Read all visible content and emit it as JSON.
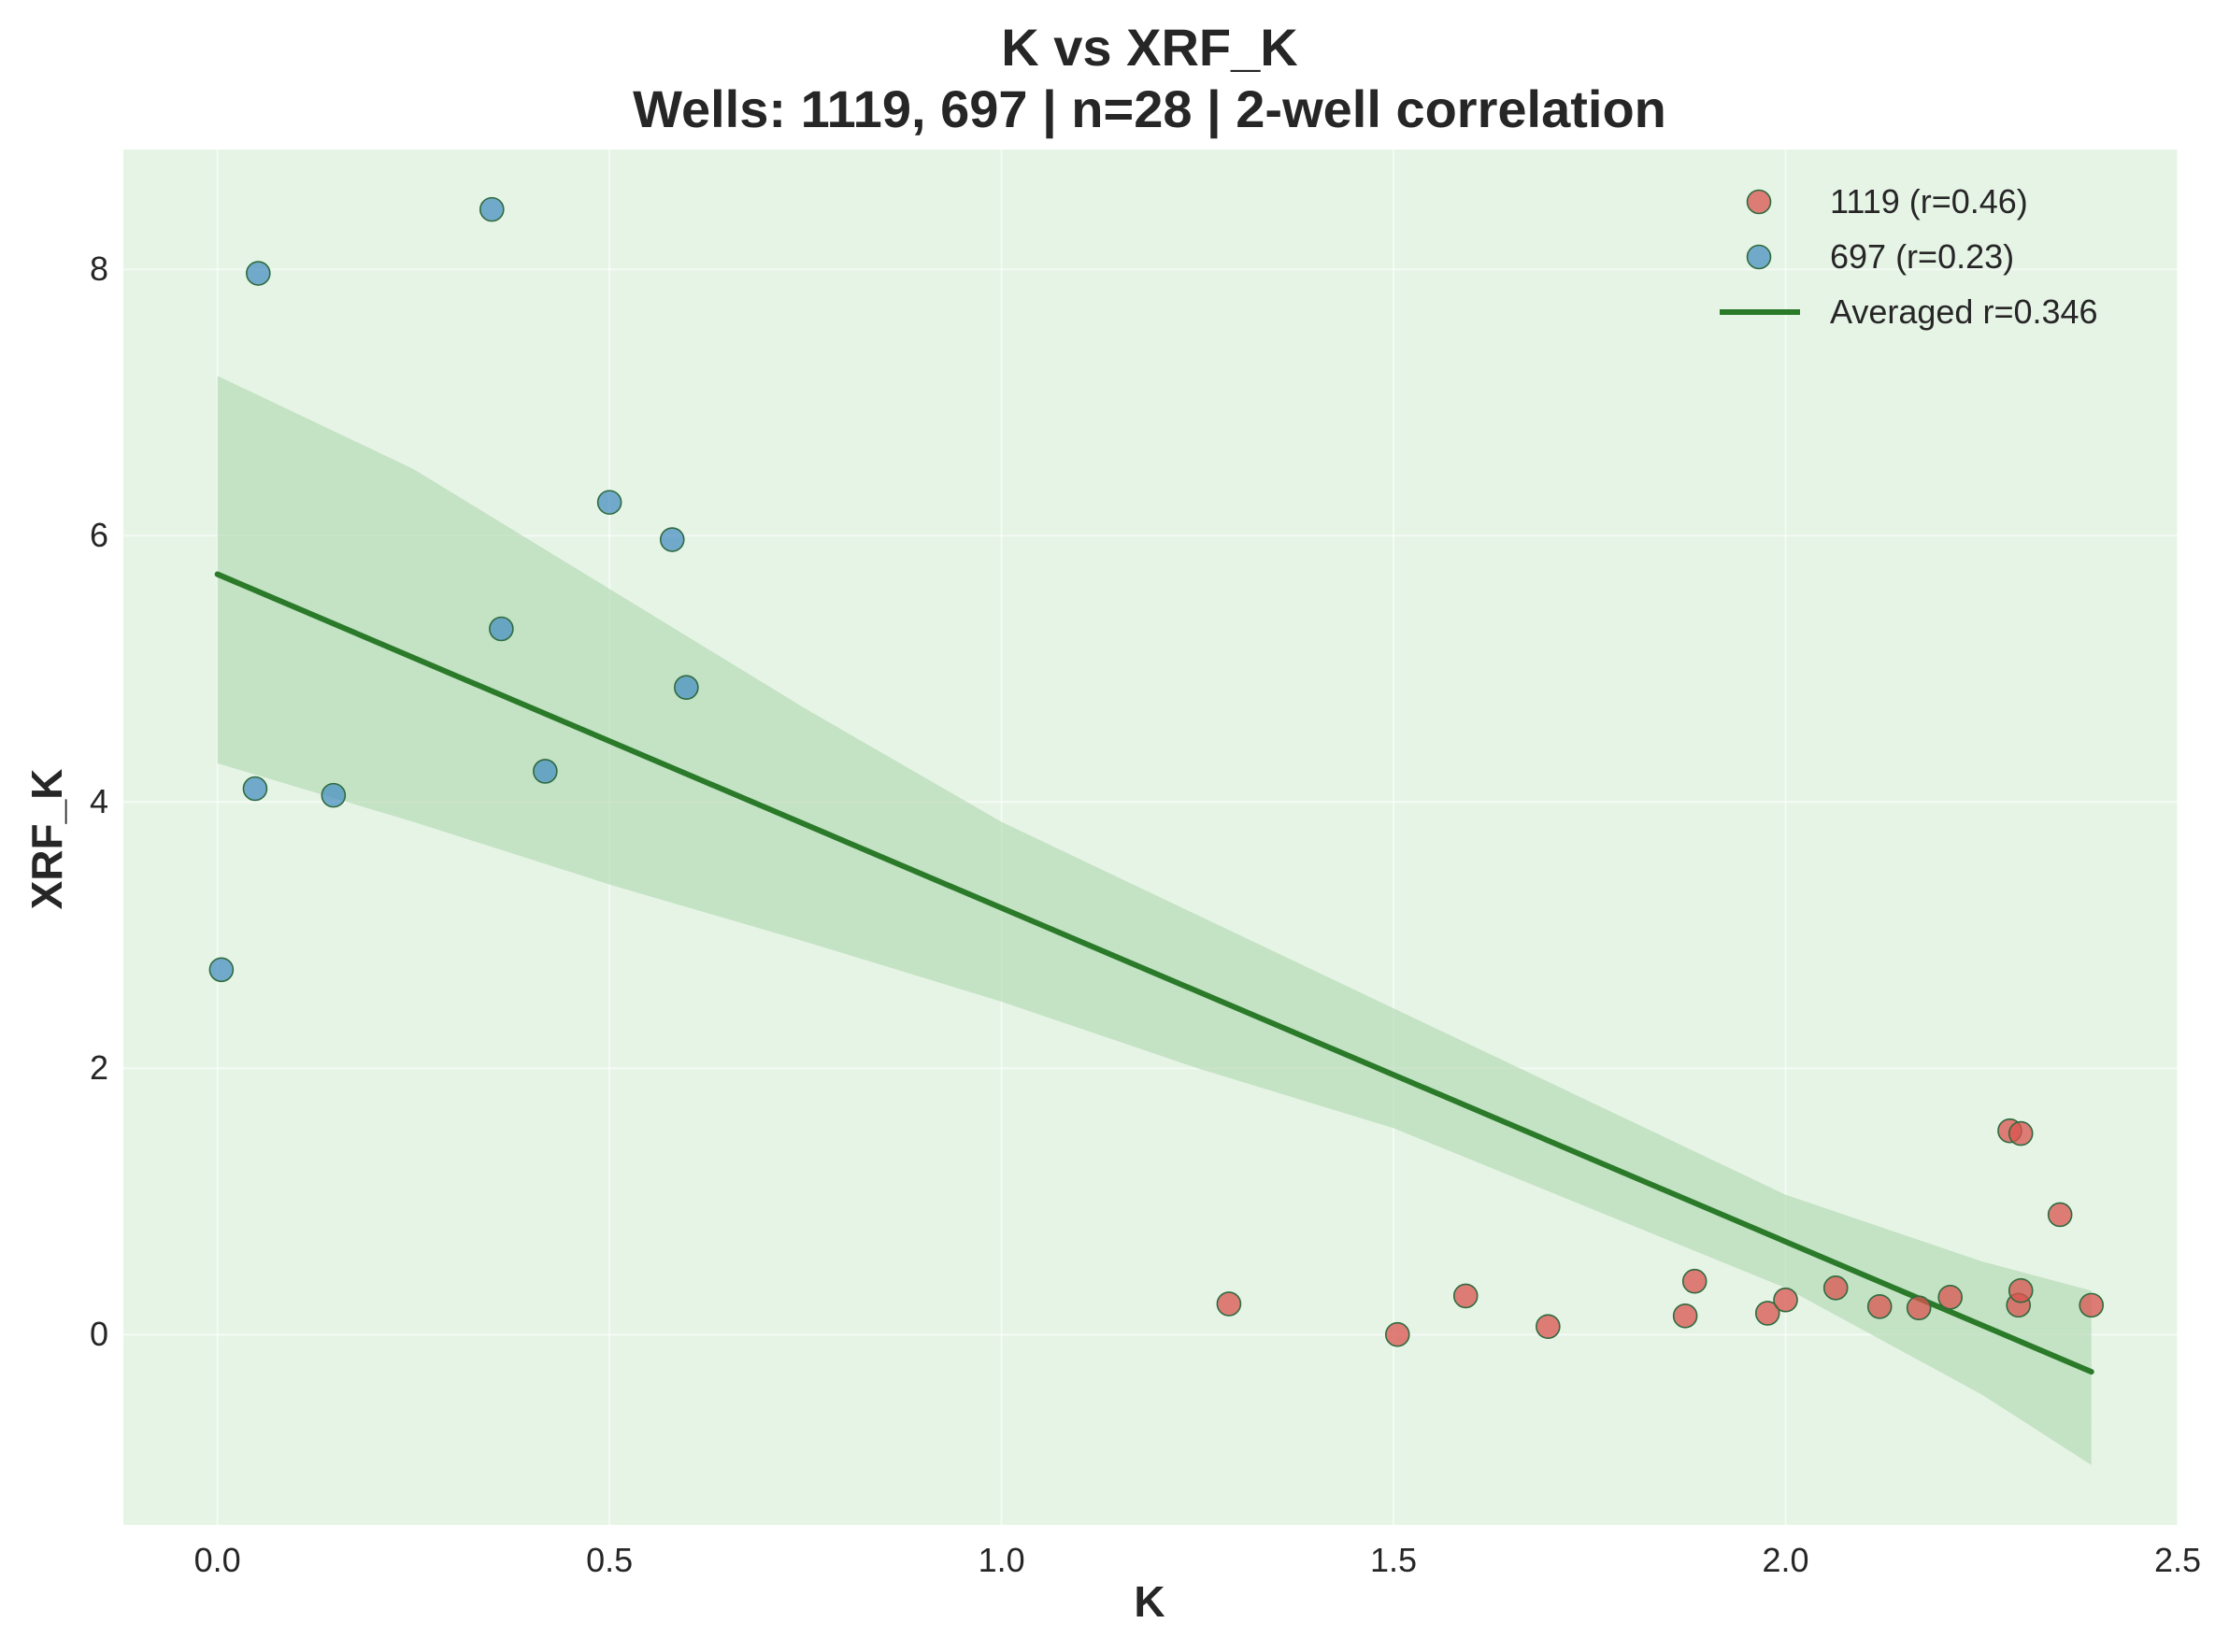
{
  "chart_data": {
    "type": "scatter",
    "title": "K vs XRF_K",
    "subtitle": "Wells: 1119, 697 | n=28 | 2-well correlation",
    "xlabel": "K",
    "ylabel": "XRF_K",
    "xlim": [
      -0.12,
      2.5
    ],
    "ylim": [
      -1.43,
      8.9
    ],
    "xticks": [
      0.0,
      0.5,
      1.0,
      1.5,
      2.0,
      2.5
    ],
    "xtick_labels": [
      "0.0",
      "0.5",
      "1.0",
      "1.5",
      "2.0",
      "2.5"
    ],
    "yticks": [
      0,
      2,
      4,
      6,
      8
    ],
    "ytick_labels": [
      "0",
      "2",
      "4",
      "6",
      "8"
    ],
    "grid": true,
    "legend_position": "top-right",
    "background_color": "#e6f4e6",
    "series": [
      {
        "name": "1119 (r=0.46)",
        "color": "#d9534f",
        "points": [
          [
            1.29,
            0.23
          ],
          [
            1.505,
            0.0
          ],
          [
            1.592,
            0.29
          ],
          [
            1.697,
            0.06
          ],
          [
            1.872,
            0.14
          ],
          [
            1.884,
            0.4
          ],
          [
            1.977,
            0.16
          ],
          [
            2.0,
            0.26
          ],
          [
            2.064,
            0.35
          ],
          [
            2.12,
            0.21
          ],
          [
            2.17,
            0.2
          ],
          [
            2.21,
            0.28
          ],
          [
            2.286,
            1.53
          ],
          [
            2.3,
            1.51
          ],
          [
            2.297,
            0.22
          ],
          [
            2.3,
            0.33
          ],
          [
            2.35,
            0.9
          ],
          [
            2.39,
            0.22
          ]
        ]
      },
      {
        "name": "697 (r=0.23)",
        "color": "#4a90c2",
        "points": [
          [
            0.005,
            2.74
          ],
          [
            0.048,
            4.1
          ],
          [
            0.052,
            7.97
          ],
          [
            0.148,
            4.05
          ],
          [
            0.35,
            8.45
          ],
          [
            0.362,
            5.3
          ],
          [
            0.418,
            4.23
          ],
          [
            0.5,
            6.25
          ],
          [
            0.58,
            5.97
          ],
          [
            0.598,
            4.86
          ]
        ]
      }
    ],
    "fit_line": {
      "name": "Averaged r=0.346",
      "color": "#2a7a2a",
      "x": [
        0.0,
        2.39
      ],
      "y": [
        5.71,
        -0.28
      ]
    },
    "confidence_band": {
      "color": "#a8d3a8",
      "x": [
        0.0,
        0.25,
        0.5,
        0.75,
        1.0,
        1.25,
        1.5,
        1.75,
        2.0,
        2.25,
        2.39
      ],
      "upper": [
        7.2,
        6.5,
        5.6,
        4.7,
        3.85,
        3.15,
        2.45,
        1.75,
        1.05,
        0.55,
        0.33
      ],
      "lower": [
        4.29,
        3.85,
        3.38,
        2.95,
        2.5,
        2.0,
        1.55,
        0.95,
        0.35,
        -0.45,
        -0.98
      ]
    }
  }
}
